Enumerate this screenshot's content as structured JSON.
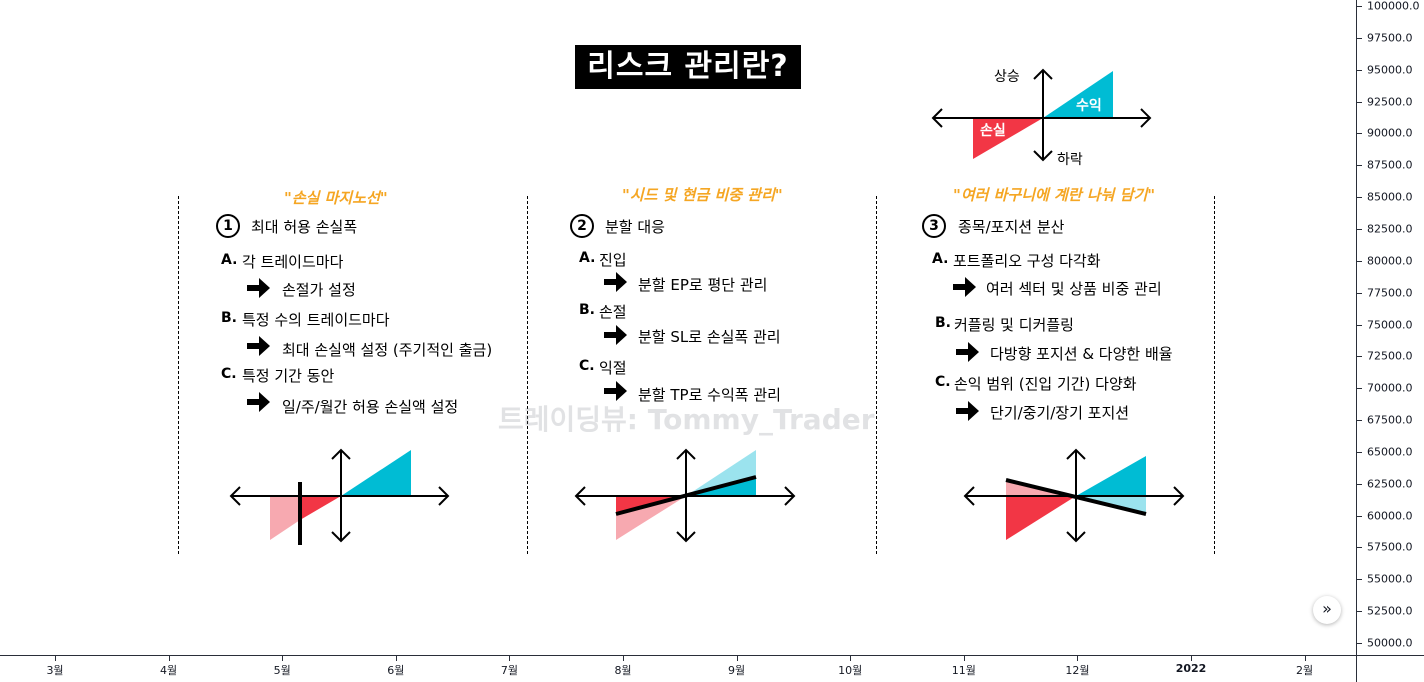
{
  "title": "리스크 관리란?",
  "watermark": "트레이딩뷰: Tommy_Trader",
  "legend_diagram": {
    "up": "상승",
    "down": "하락",
    "profit": "수익",
    "loss": "손실"
  },
  "sections": [
    {
      "subtitle": "\"손실 마지노선\"",
      "number": "1",
      "heading": "최대 허용 손실폭",
      "items": [
        {
          "letter": "A.",
          "text": "각 트레이드마다",
          "detail": "손절가 설정"
        },
        {
          "letter": "B.",
          "text": "특정 수의 트레이드마다",
          "detail": "최대 손실액 설정 (주기적인 출금)"
        },
        {
          "letter": "C.",
          "text": "특정 기간 동안",
          "detail": "일/주/월간 허용 손실액 설정"
        }
      ]
    },
    {
      "subtitle": "\"시드 및 현금 비중 관리\"",
      "number": "2",
      "heading": "분할 대응",
      "items": [
        {
          "letter": "A.",
          "text": "진입",
          "detail": "분할 EP로 평단 관리"
        },
        {
          "letter": "B.",
          "text": "손절",
          "detail": "분할 SL로 손실폭 관리"
        },
        {
          "letter": "C.",
          "text": "익절",
          "detail": "분할 TP로 수익폭 관리"
        }
      ]
    },
    {
      "subtitle": "\"여러 바구니에 계란 나눠 담기\"",
      "number": "3",
      "heading": "종목/포지션 분산",
      "items": [
        {
          "letter": "A.",
          "text": "포트폴리오 구성 다각화",
          "detail": "여러 섹터 및 상품 비중 관리"
        },
        {
          "letter": "B.",
          "text": "커플링 및 디커플링",
          "detail": "다방향 포지션 & 다양한 배율"
        },
        {
          "letter": "C.",
          "text": "손익 범위 (진입 기간) 다양화",
          "detail": "단기/중기/장기 포지션"
        }
      ]
    }
  ],
  "price_scale": [
    "100000.0",
    "97500.0",
    "95000.0",
    "92500.0",
    "90000.0",
    "87500.0",
    "85000.0",
    "82500.0",
    "80000.0",
    "77500.0",
    "75000.0",
    "72500.0",
    "70000.0",
    "67500.0",
    "65000.0",
    "62500.0",
    "60000.0",
    "57500.0",
    "55000.0",
    "52500.0",
    "50000.0"
  ],
  "time_scale": [
    {
      "label": "3월",
      "bold": false
    },
    {
      "label": "4월",
      "bold": false
    },
    {
      "label": "5월",
      "bold": false
    },
    {
      "label": "6월",
      "bold": false
    },
    {
      "label": "7월",
      "bold": false
    },
    {
      "label": "8월",
      "bold": false
    },
    {
      "label": "9월",
      "bold": false
    },
    {
      "label": "10월",
      "bold": false
    },
    {
      "label": "11월",
      "bold": false
    },
    {
      "label": "12월",
      "bold": false
    },
    {
      "label": "2022",
      "bold": true
    },
    {
      "label": "2월",
      "bold": false
    }
  ],
  "colors": {
    "red": "#f23645",
    "pink": "#f7a9b0",
    "cyan": "#00bcd4",
    "light_cyan": "#9be3ee",
    "orange": "#f5a623"
  },
  "icons": {
    "scroll_button": "double-chevron-right-icon",
    "bullet_arrow": "arrow-right-icon"
  }
}
